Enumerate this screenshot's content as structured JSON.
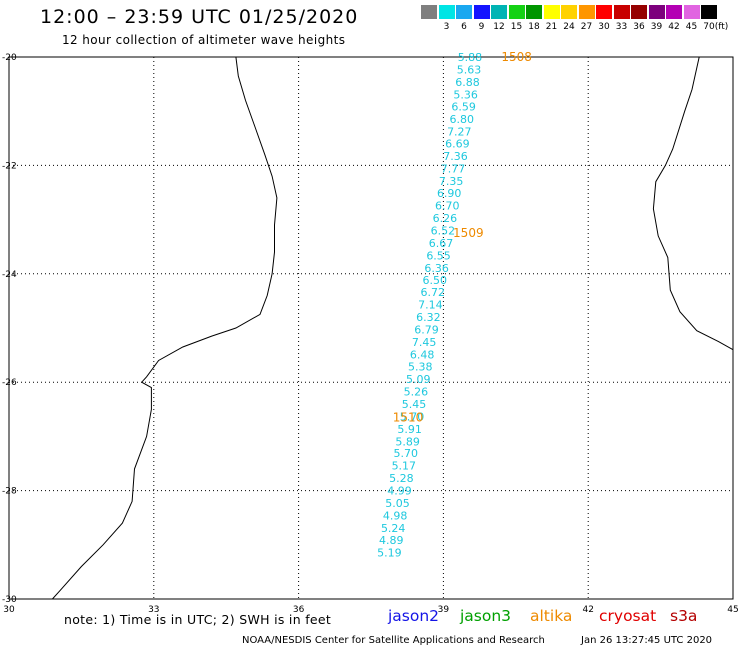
{
  "header": {
    "title": "12:00 – 23:59 UTC 01/25/2020",
    "subtitle": "12 hour collection of altimeter wave heights"
  },
  "color_scale": {
    "unit_label": "(ft)",
    "bins": [
      {
        "label": "",
        "color": "#7f7f7f"
      },
      {
        "label": "3",
        "color": "#00e5e5"
      },
      {
        "label": "6",
        "color": "#1aa8f0"
      },
      {
        "label": "9",
        "color": "#1414ff"
      },
      {
        "label": "12",
        "color": "#00b4b4"
      },
      {
        "label": "15",
        "color": "#14d214"
      },
      {
        "label": "18",
        "color": "#009600"
      },
      {
        "label": "21",
        "color": "#ffff00"
      },
      {
        "label": "24",
        "color": "#ffd200"
      },
      {
        "label": "27",
        "color": "#ff9600"
      },
      {
        "label": "30",
        "color": "#ff0000"
      },
      {
        "label": "33",
        "color": "#c80000"
      },
      {
        "label": "36",
        "color": "#960000"
      },
      {
        "label": "39",
        "color": "#7d007d"
      },
      {
        "label": "42",
        "color": "#b400b4"
      },
      {
        "label": "45",
        "color": "#e164e1"
      },
      {
        "label": "70",
        "color": "#000000"
      }
    ]
  },
  "map": {
    "lon_range": [
      30,
      45
    ],
    "lat_range": [
      -30,
      -20
    ],
    "lon_ticks": [
      "30",
      "33",
      "36",
      "39",
      "42",
      "45"
    ],
    "lat_ticks": [
      "-20",
      "-22",
      "-24",
      "-26",
      "-28",
      "-30"
    ],
    "grid": "dotted",
    "track_color": "#1ec8de",
    "time_label_color": "#ee8a00",
    "wave_heights_ft": [
      {
        "lat": -20.0,
        "lon": 39.55,
        "value": "5.88"
      },
      {
        "lat": -20.23,
        "lon": 39.53,
        "value": "5.63"
      },
      {
        "lat": -20.46,
        "lon": 39.5,
        "value": "6.88"
      },
      {
        "lat": -20.69,
        "lon": 39.46,
        "value": "5.36"
      },
      {
        "lat": -20.91,
        "lon": 39.42,
        "value": "6.59"
      },
      {
        "lat": -21.14,
        "lon": 39.38,
        "value": "6.80"
      },
      {
        "lat": -21.37,
        "lon": 39.33,
        "value": "7.27"
      },
      {
        "lat": -21.6,
        "lon": 39.29,
        "value": "6.69"
      },
      {
        "lat": -21.83,
        "lon": 39.25,
        "value": "7.36"
      },
      {
        "lat": -22.06,
        "lon": 39.2,
        "value": "7.77"
      },
      {
        "lat": -22.29,
        "lon": 39.16,
        "value": "7.35"
      },
      {
        "lat": -22.51,
        "lon": 39.12,
        "value": "6.90"
      },
      {
        "lat": -22.74,
        "lon": 39.08,
        "value": "6.70"
      },
      {
        "lat": -22.97,
        "lon": 39.03,
        "value": "6.26"
      },
      {
        "lat": -23.2,
        "lon": 38.99,
        "value": "6.52"
      },
      {
        "lat": -23.43,
        "lon": 38.95,
        "value": "6.67"
      },
      {
        "lat": -23.66,
        "lon": 38.9,
        "value": "6.55"
      },
      {
        "lat": -23.89,
        "lon": 38.86,
        "value": "6.36"
      },
      {
        "lat": -24.11,
        "lon": 38.82,
        "value": "6.50"
      },
      {
        "lat": -24.34,
        "lon": 38.78,
        "value": "6.72"
      },
      {
        "lat": -24.57,
        "lon": 38.73,
        "value": "7.14"
      },
      {
        "lat": -24.8,
        "lon": 38.69,
        "value": "6.32"
      },
      {
        "lat": -25.03,
        "lon": 38.65,
        "value": "6.79"
      },
      {
        "lat": -25.26,
        "lon": 38.6,
        "value": "7.45"
      },
      {
        "lat": -25.49,
        "lon": 38.56,
        "value": "6.48"
      },
      {
        "lat": -25.71,
        "lon": 38.52,
        "value": "5.38"
      },
      {
        "lat": -25.94,
        "lon": 38.48,
        "value": "5.09"
      },
      {
        "lat": -26.17,
        "lon": 38.43,
        "value": "5.26"
      },
      {
        "lat": -26.4,
        "lon": 38.39,
        "value": "5.45"
      },
      {
        "lat": -26.63,
        "lon": 38.35,
        "value": "5.70"
      },
      {
        "lat": -26.86,
        "lon": 38.3,
        "value": "5.91"
      },
      {
        "lat": -27.09,
        "lon": 38.26,
        "value": "5.89"
      },
      {
        "lat": -27.31,
        "lon": 38.22,
        "value": "5.70"
      },
      {
        "lat": -27.54,
        "lon": 38.18,
        "value": "5.17"
      },
      {
        "lat": -27.77,
        "lon": 38.13,
        "value": "5.28"
      },
      {
        "lat": -28.0,
        "lon": 38.09,
        "value": "4.99"
      },
      {
        "lat": -28.23,
        "lon": 38.05,
        "value": "5.05"
      },
      {
        "lat": -28.46,
        "lon": 38.0,
        "value": "4.98"
      },
      {
        "lat": -28.69,
        "lon": 37.96,
        "value": "5.24"
      },
      {
        "lat": -28.91,
        "lon": 37.92,
        "value": "4.89"
      },
      {
        "lat": -29.14,
        "lon": 37.88,
        "value": "5.19"
      }
    ],
    "time_labels": [
      {
        "lat": -20.0,
        "lon": 40.2,
        "text": "1508"
      },
      {
        "lat": -23.25,
        "lon": 39.2,
        "text": "1509"
      },
      {
        "lat": -26.65,
        "lon": 37.95,
        "text": "1510"
      }
    ],
    "coastlines": {
      "africa_mainland": [
        [
          34.7,
          -20.0
        ],
        [
          34.75,
          -20.35
        ],
        [
          34.9,
          -20.8
        ],
        [
          35.1,
          -21.3
        ],
        [
          35.3,
          -21.8
        ],
        [
          35.45,
          -22.2
        ],
        [
          35.55,
          -22.6
        ],
        [
          35.5,
          -23.1
        ],
        [
          35.5,
          -23.6
        ],
        [
          35.45,
          -24.0
        ],
        [
          35.35,
          -24.4
        ],
        [
          35.2,
          -24.75
        ],
        [
          34.7,
          -25.0
        ],
        [
          34.2,
          -25.15
        ],
        [
          33.6,
          -25.35
        ],
        [
          33.1,
          -25.6
        ],
        [
          32.85,
          -25.9
        ],
        [
          32.75,
          -26.0
        ],
        [
          32.95,
          -26.1
        ],
        [
          32.95,
          -26.5
        ],
        [
          32.85,
          -27.0
        ],
        [
          32.6,
          -27.6
        ],
        [
          32.55,
          -28.2
        ],
        [
          32.35,
          -28.6
        ],
        [
          31.95,
          -29.0
        ],
        [
          31.5,
          -29.4
        ],
        [
          31.05,
          -29.85
        ],
        [
          30.9,
          -30.0
        ]
      ],
      "madagascar": [
        [
          44.3,
          -20.0
        ],
        [
          44.15,
          -20.6
        ],
        [
          44.0,
          -21.0
        ],
        [
          43.75,
          -21.7
        ],
        [
          43.6,
          -22.0
        ],
        [
          43.4,
          -22.3
        ],
        [
          43.35,
          -22.8
        ],
        [
          43.45,
          -23.3
        ],
        [
          43.65,
          -23.7
        ],
        [
          43.7,
          -24.3
        ],
        [
          43.9,
          -24.7
        ],
        [
          44.25,
          -25.05
        ],
        [
          44.7,
          -25.25
        ],
        [
          45.0,
          -25.4
        ]
      ]
    }
  },
  "footer": {
    "note": "note: 1) Time is in UTC; 2) SWH is in feet",
    "legend": [
      {
        "label": "jason2",
        "color": "#1414e6"
      },
      {
        "label": "jason3",
        "color": "#00a000"
      },
      {
        "label": "altika",
        "color": "#ee8a00"
      },
      {
        "label": "cryosat",
        "color": "#e00000"
      },
      {
        "label": "s3a",
        "color": "#b40000"
      }
    ],
    "credit": "NOAA/NESDIS Center for Satellite Applications and Research",
    "timestamp": "Jan 26 13:27:45 UTC 2020"
  }
}
